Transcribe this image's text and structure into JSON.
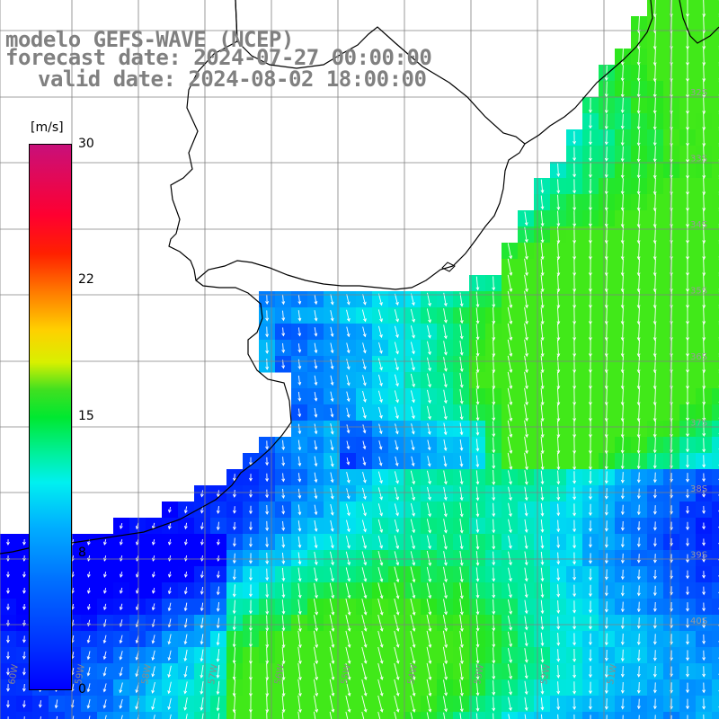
{
  "title": {
    "line1": "modelo GEFS-WAVE (NCEP)",
    "line2": "forecast date: 2024-07-27 00:00:00",
    "line3": "valid date: 2024-08-02 18:00:00"
  },
  "colorbar": {
    "unit": "[m/s]",
    "ticks": [
      "30",
      "22",
      "15",
      "8",
      "0"
    ],
    "tick_values": [
      30,
      22,
      15,
      8,
      0
    ],
    "range": [
      0,
      30
    ]
  },
  "map": {
    "lon_labels": [
      "60W",
      "59W",
      "58W",
      "57W",
      "56W",
      "55W",
      "54W",
      "53W",
      "52W",
      "51W"
    ],
    "lat_labels": [
      "32S",
      "33S",
      "34S",
      "35S",
      "36S",
      "37S",
      "38S",
      "39S",
      "40S"
    ],
    "grid_color": "#808080",
    "coast_color": "#000000",
    "arrow_color": "#ffffff",
    "field": "wind speed [m/s] with wind direction arrows"
  }
}
